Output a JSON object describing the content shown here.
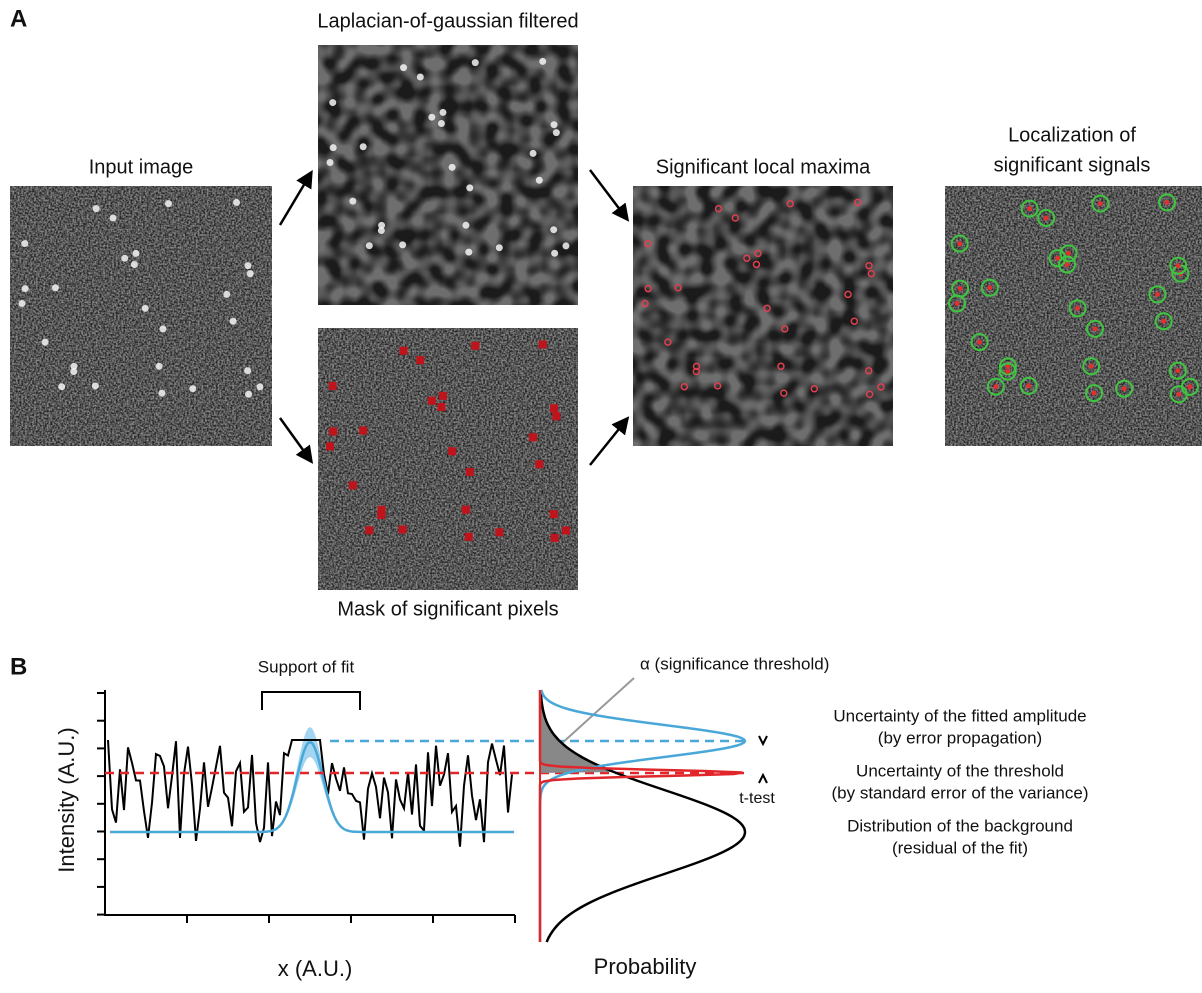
{
  "panel_a": {
    "label": "A",
    "input_image": "Input image",
    "log_filtered": "Laplacian-of-gaussian filtered",
    "mask": "Mask of significant pixels",
    "local_maxima": "Significant local maxima",
    "localization": [
      "Localization of",
      "significant signals"
    ]
  },
  "panel_b": {
    "label": "B",
    "support": "Support of fit",
    "alpha": "α (significance threshold)",
    "y_axis": "Intensity (A.U.)",
    "x_axis": "x (A.U.)",
    "probability": "Probability",
    "t_test": "t-test",
    "legend": [
      {
        "lines": [
          "Uncertainty of the fitted amplitude",
          "(by error propagation)"
        ],
        "color": "#4aa8d8"
      },
      {
        "lines": [
          "Uncertainty of the threshold",
          "(by standard error of the variance)"
        ],
        "color": "#e0262b"
      },
      {
        "lines": [
          "Distribution of the background",
          "(residual of the fit)"
        ],
        "color": "#000000"
      }
    ]
  }
}
